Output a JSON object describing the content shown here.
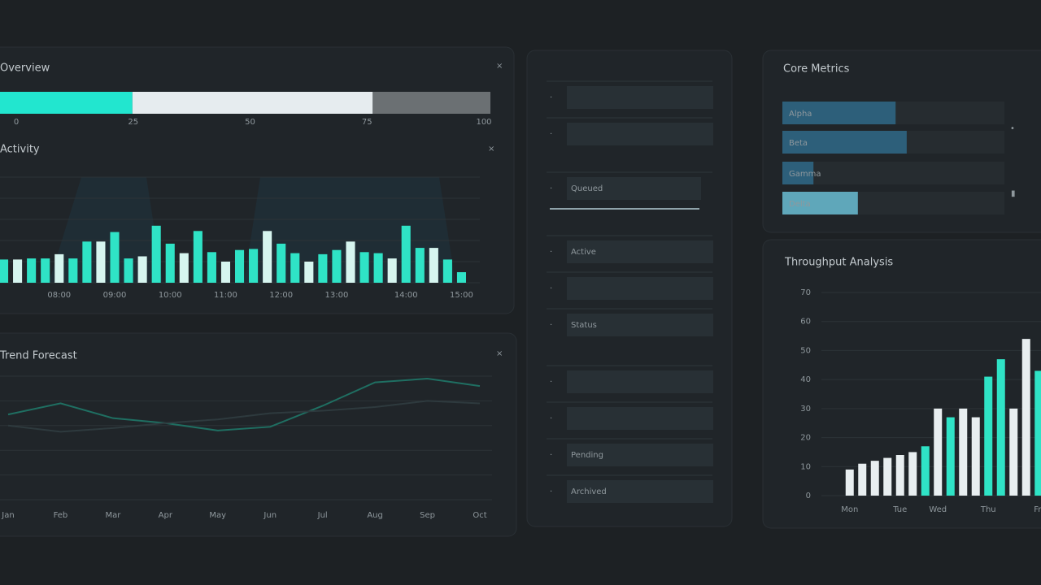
{
  "chart_data": [
    {
      "type": "progress",
      "title": "Overview",
      "values": [
        27,
        49,
        24
      ],
      "colors": [
        "#22e6cf",
        "#e6ecef",
        "#6b7073"
      ],
      "xlim": [
        0,
        100
      ],
      "xticks": [
        0,
        25,
        50,
        75,
        100
      ]
    },
    {
      "type": "bar",
      "title": "Activity",
      "categories": [
        null,
        null,
        null,
        null,
        "08:00",
        null,
        null,
        null,
        "09:00",
        null,
        null,
        null,
        "10:00",
        null,
        null,
        null,
        "11:00",
        null,
        null,
        null,
        "12:00",
        null,
        null,
        null,
        "13:00",
        null,
        null,
        null,
        null,
        "14:00",
        null,
        null,
        null,
        "15:00"
      ],
      "values": [
        22,
        22,
        23,
        23,
        27,
        23,
        39,
        39,
        48,
        23,
        25,
        54,
        37,
        28,
        49,
        29,
        20,
        31,
        32,
        49,
        37,
        28,
        20,
        27,
        31,
        39,
        29,
        28,
        23,
        54,
        33,
        33,
        22,
        10
      ],
      "color": "#2fe3c6",
      "ylim": [
        0,
        100
      ],
      "yticks": [
        0,
        20,
        40,
        60,
        80,
        100
      ],
      "grid": true,
      "tick_labels": false
    },
    {
      "type": "line",
      "title": "Trend Forecast",
      "categories": [
        "Jan",
        "Feb",
        "Mar",
        "Apr",
        "May",
        "Jun",
        "Jul",
        "Aug",
        "Sep",
        "Oct"
      ],
      "series": [
        {
          "color": "#1f6f62",
          "values": [
            69,
            78,
            66,
            62,
            56,
            59,
            76,
            95,
            98,
            92
          ]
        },
        {
          "color": "#2e3a3e",
          "values": [
            60,
            55,
            58,
            62,
            65,
            70,
            72,
            75,
            80,
            78
          ]
        }
      ],
      "ylim": [
        0,
        100
      ],
      "yticks": [
        0,
        20,
        40,
        60,
        80,
        100
      ],
      "grid": true,
      "tick_labels": false
    },
    {
      "type": "hbar",
      "title": "Core Metrics",
      "categories": [
        "Alpha",
        "Beta",
        "Gamma",
        "Delta"
      ],
      "values": [
        51,
        56,
        14,
        34
      ],
      "colors": [
        "#2d5f7a",
        "#2d5f7a",
        "#2d5f7a",
        "#5fa7ba"
      ],
      "xlim": [
        0,
        100
      ]
    },
    {
      "type": "bar",
      "title": "Throughput Analysis",
      "categories": [
        "Mon",
        null,
        null,
        null,
        "Tue",
        null,
        null,
        "Wed",
        null,
        null,
        null,
        "Thu",
        null,
        null,
        null,
        "Fri"
      ],
      "values": [
        9,
        11,
        12,
        13,
        14,
        15,
        17,
        30,
        27,
        30,
        27,
        41,
        47,
        30,
        54,
        43
      ],
      "colors": [
        "#e8eef0",
        "#e8eef0",
        "#e8eef0",
        "#e8eef0",
        "#e8eef0",
        "#e8eef0",
        "#2fe3c6",
        "#e8eef0",
        "#2fe3c6",
        "#e8eef0",
        "#e8eef0",
        "#2fe3c6",
        "#2fe3c6",
        "#e8eef0",
        "#e8eef0",
        "#2fe3c6"
      ],
      "ylim": [
        0,
        70
      ],
      "yticks": [
        0,
        10,
        20,
        30,
        40,
        50,
        60,
        70
      ],
      "grid": true,
      "tick_labels": true
    }
  ],
  "list_panel": {
    "items": [
      "Queued",
      "Active",
      "Status",
      "Pending",
      "Archived"
    ]
  }
}
